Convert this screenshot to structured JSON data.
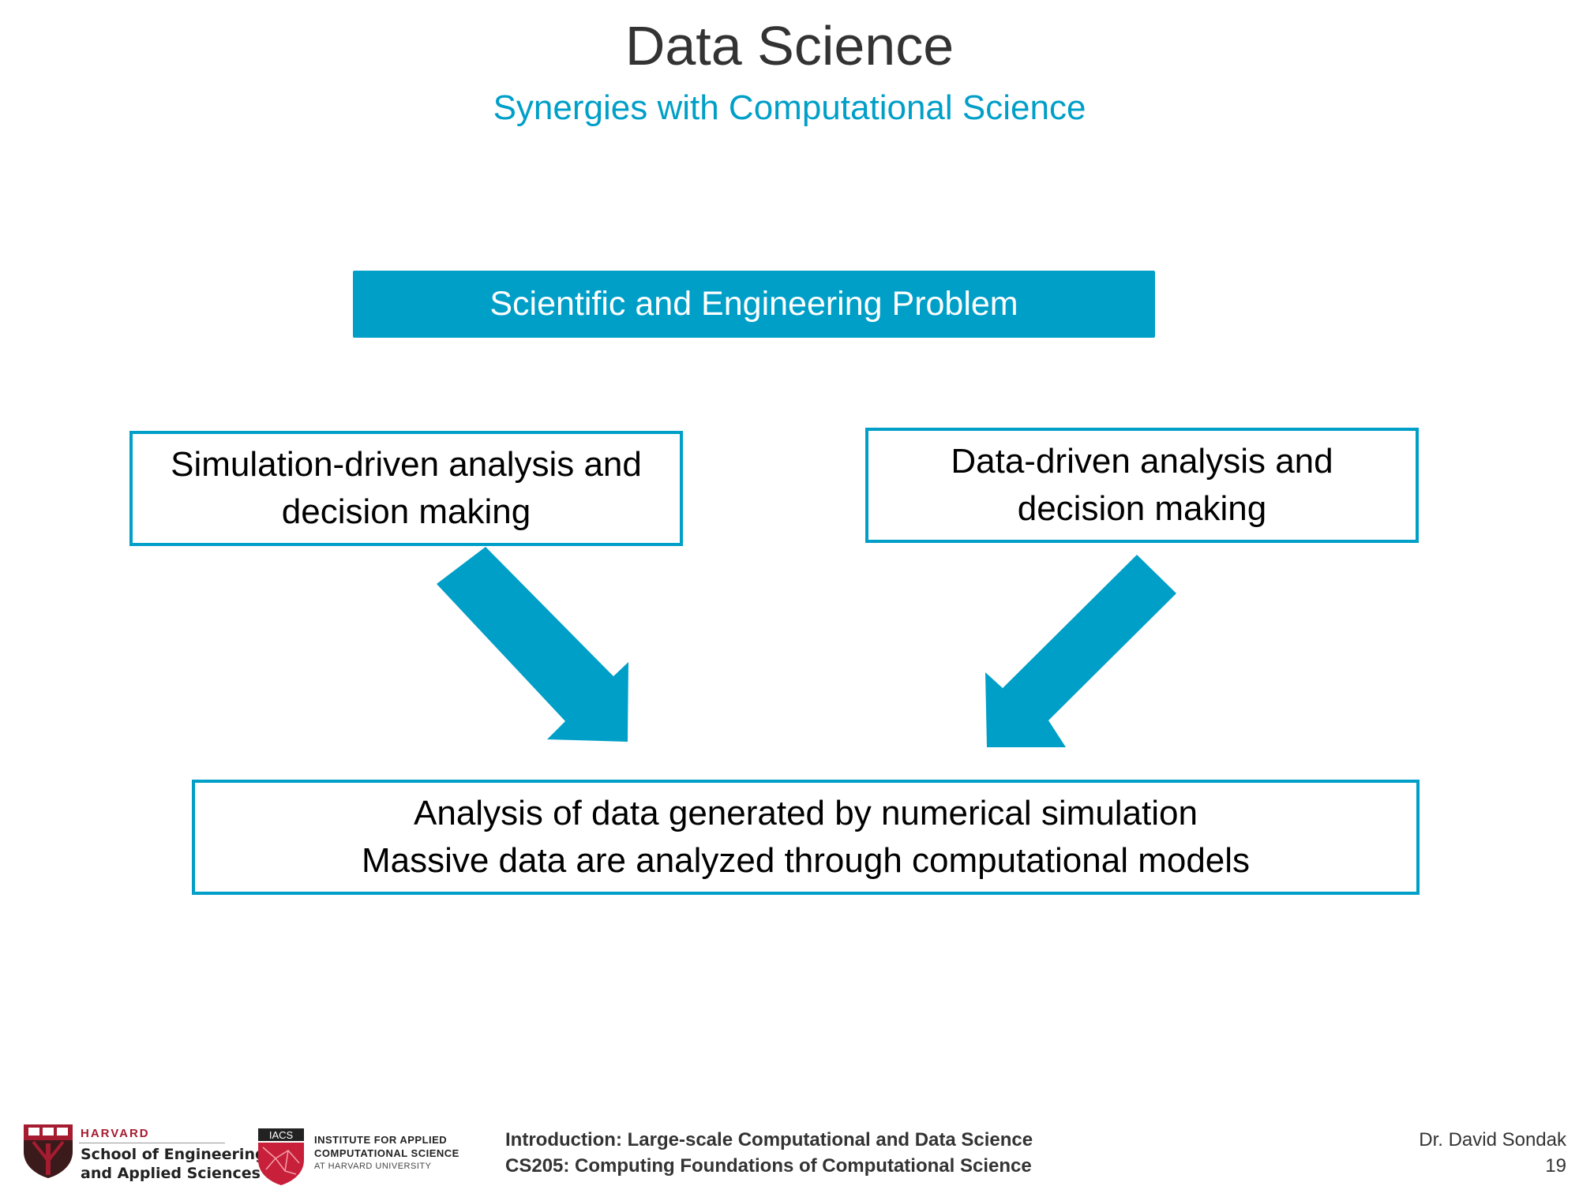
{
  "title": "Data Science",
  "subtitle": "Synergies with Computational Science",
  "diagram": {
    "problem": "Scientific and Engineering Problem",
    "left_box": {
      "line1": "Simulation-driven analysis and",
      "line2": "decision making"
    },
    "right_box": {
      "line1": "Data-driven analysis and",
      "line2": "decision making"
    },
    "result_box": {
      "line1": "Analysis of data generated by numerical simulation",
      "line2": "Massive data are analyzed through computational models"
    },
    "accent_color": "#009fc8"
  },
  "footer": {
    "harvard": {
      "name": "HARVARD",
      "line1": "School of Engineering",
      "line2": "and Applied Sciences"
    },
    "iacs": {
      "badge": "IACS",
      "line1": "INSTITUTE FOR APPLIED",
      "line2": "COMPUTATIONAL SCIENCE",
      "line3": "AT HARVARD UNIVERSITY"
    },
    "course_line1": "Introduction: Large-scale Computational and Data Science",
    "course_line2": "CS205: Computing Foundations of Computational Science",
    "author": "Dr. David Sondak",
    "page_number": "19"
  }
}
